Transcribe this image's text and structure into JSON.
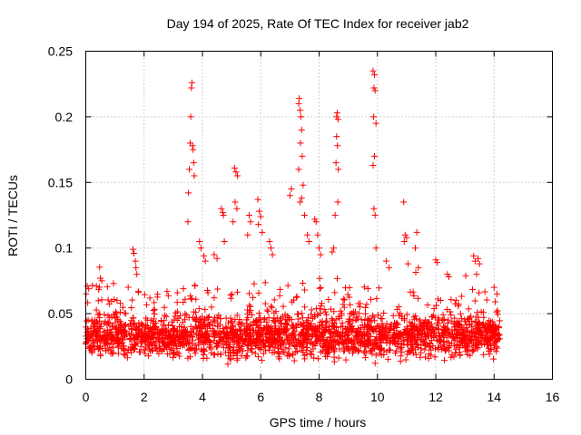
{
  "chart_data": {
    "type": "scatter",
    "title": "Day 194 of 2025, Rate Of TEC Index for receiver jab2",
    "xlabel": "GPS time / hours",
    "ylabel": "ROTI / TECUs",
    "xlim": [
      0,
      16
    ],
    "ylim": [
      0,
      0.25
    ],
    "x_ticks": [
      0,
      2,
      4,
      6,
      8,
      10,
      12,
      14,
      16
    ],
    "x_tick_labels": [
      "0",
      "2",
      "4",
      "6",
      "8",
      "10",
      "12",
      "14",
      "16"
    ],
    "y_ticks": [
      0,
      0.05,
      0.1,
      0.15,
      0.2,
      0.25
    ],
    "y_tick_labels": [
      "0",
      "0.05",
      "0.1",
      "0.15",
      "0.2",
      "0.25"
    ],
    "grid": true,
    "marker": "plus",
    "color": "#ff0000",
    "data_extent_hours": [
      0,
      14.2
    ],
    "baseline_band": [
      0.01,
      0.045
    ],
    "series": [
      {
        "name": "jab2",
        "points": [
          [
            0.05,
            0.071
          ],
          [
            0.1,
            0.069
          ],
          [
            0.5,
            0.077
          ],
          [
            0.55,
            0.075
          ],
          [
            0.95,
            0.073
          ],
          [
            1.62,
            0.099
          ],
          [
            1.65,
            0.096
          ],
          [
            1.7,
            0.09
          ],
          [
            1.72,
            0.085
          ],
          [
            1.75,
            0.08
          ],
          [
            3.5,
            0.12
          ],
          [
            3.52,
            0.142
          ],
          [
            3.55,
            0.16
          ],
          [
            3.58,
            0.18
          ],
          [
            3.6,
            0.2
          ],
          [
            3.62,
            0.222
          ],
          [
            3.64,
            0.226
          ],
          [
            3.66,
            0.178
          ],
          [
            3.68,
            0.175
          ],
          [
            3.7,
            0.165
          ],
          [
            3.72,
            0.155
          ],
          [
            3.9,
            0.105
          ],
          [
            3.95,
            0.1
          ],
          [
            4.05,
            0.094
          ],
          [
            4.1,
            0.09
          ],
          [
            4.4,
            0.095
          ],
          [
            4.5,
            0.092
          ],
          [
            4.65,
            0.13
          ],
          [
            4.7,
            0.127
          ],
          [
            4.72,
            0.125
          ],
          [
            4.75,
            0.105
          ],
          [
            5.1,
            0.161
          ],
          [
            5.15,
            0.158
          ],
          [
            5.2,
            0.155
          ],
          [
            5.12,
            0.135
          ],
          [
            5.18,
            0.13
          ],
          [
            5.05,
            0.12
          ],
          [
            5.6,
            0.125
          ],
          [
            5.65,
            0.12
          ],
          [
            5.55,
            0.11
          ],
          [
            5.9,
            0.137
          ],
          [
            5.95,
            0.128
          ],
          [
            6.0,
            0.124
          ],
          [
            5.92,
            0.118
          ],
          [
            6.05,
            0.112
          ],
          [
            6.3,
            0.105
          ],
          [
            6.35,
            0.1
          ],
          [
            6.4,
            0.095
          ],
          [
            7.0,
            0.14
          ],
          [
            7.05,
            0.145
          ],
          [
            7.3,
            0.21
          ],
          [
            7.32,
            0.214
          ],
          [
            7.35,
            0.205
          ],
          [
            7.38,
            0.2
          ],
          [
            7.4,
            0.19
          ],
          [
            7.36,
            0.18
          ],
          [
            7.42,
            0.17
          ],
          [
            7.3,
            0.16
          ],
          [
            7.45,
            0.148
          ],
          [
            7.4,
            0.138
          ],
          [
            7.35,
            0.135
          ],
          [
            7.5,
            0.125
          ],
          [
            7.6,
            0.11
          ],
          [
            7.65,
            0.105
          ],
          [
            7.85,
            0.122
          ],
          [
            7.9,
            0.12
          ],
          [
            7.95,
            0.11
          ],
          [
            8.0,
            0.1
          ],
          [
            8.05,
            0.095
          ],
          [
            8.6,
            0.2
          ],
          [
            8.62,
            0.203
          ],
          [
            8.65,
            0.198
          ],
          [
            8.6,
            0.185
          ],
          [
            8.63,
            0.178
          ],
          [
            8.58,
            0.165
          ],
          [
            8.66,
            0.16
          ],
          [
            8.64,
            0.135
          ],
          [
            8.55,
            0.125
          ],
          [
            8.5,
            0.1
          ],
          [
            8.45,
            0.097
          ],
          [
            9.85,
            0.235
          ],
          [
            9.9,
            0.232
          ],
          [
            9.88,
            0.222
          ],
          [
            9.92,
            0.22
          ],
          [
            9.87,
            0.2
          ],
          [
            9.95,
            0.195
          ],
          [
            9.9,
            0.17
          ],
          [
            9.85,
            0.163
          ],
          [
            9.88,
            0.13
          ],
          [
            9.92,
            0.125
          ],
          [
            9.95,
            0.1
          ],
          [
            10.3,
            0.09
          ],
          [
            10.4,
            0.085
          ],
          [
            10.9,
            0.135
          ],
          [
            10.95,
            0.11
          ],
          [
            11.0,
            0.108
          ],
          [
            10.92,
            0.105
          ],
          [
            11.35,
            0.112
          ],
          [
            11.3,
            0.1
          ],
          [
            11.05,
            0.088
          ],
          [
            11.4,
            0.085
          ],
          [
            12.0,
            0.091
          ],
          [
            12.05,
            0.089
          ],
          [
            12.4,
            0.08
          ],
          [
            12.45,
            0.078
          ],
          [
            13.3,
            0.094
          ],
          [
            13.35,
            0.09
          ],
          [
            13.45,
            0.092
          ],
          [
            13.5,
            0.088
          ],
          [
            13.4,
            0.08
          ],
          [
            14.0,
            0.07
          ],
          [
            14.1,
            0.065
          ]
        ]
      }
    ]
  }
}
